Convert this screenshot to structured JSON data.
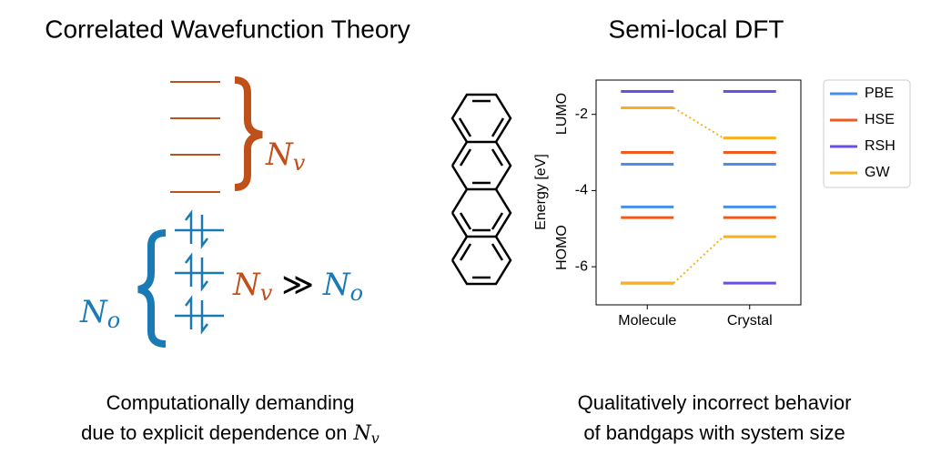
{
  "left_panel": {
    "title": "Correlated Wavefunction Theory",
    "virtual_label": {
      "base": "N",
      "sub": "v"
    },
    "occupied_label": {
      "base": "N",
      "sub": "o"
    },
    "relation": {
      "left": {
        "base": "N",
        "sub": "v"
      },
      "operator": "≫",
      "right": {
        "base": "N",
        "sub": "o"
      }
    },
    "caption": {
      "line1": "Computationally demanding",
      "line2": "due to explicit dependence on",
      "symbol": {
        "base": "N",
        "sub": "v"
      }
    }
  },
  "right_caption": {
    "line1": "Qualitatively incorrect behavior",
    "line2": "of bandgaps with system size"
  },
  "chart_data": {
    "type": "levels",
    "title": "Semi-local DFT",
    "y_label": "Energy [eV]",
    "level_labels": [
      "LUMO",
      "HOMO"
    ],
    "categories": [
      "Molecule",
      "Crystal"
    ],
    "ylim": [
      -7,
      -1.1
    ],
    "yticks": [
      -2,
      -4,
      -6
    ],
    "legend": "right",
    "series": [
      {
        "name": "PBE",
        "color": "#4a8fe7",
        "values": [
          [
            -3.31,
            -4.43
          ],
          [
            -3.31,
            -4.43
          ]
        ]
      },
      {
        "name": "HSE",
        "color": "#f05a1e",
        "values": [
          [
            -3.0,
            -4.71
          ],
          [
            -3.0,
            -4.71
          ]
        ]
      },
      {
        "name": "RSH",
        "color": "#6a4fe0",
        "values": [
          [
            -1.4,
            -6.43
          ],
          [
            -1.4,
            -6.43
          ]
        ]
      },
      {
        "name": "GW",
        "color": "#f7b11e",
        "values": [
          [
            -1.83,
            -6.43
          ],
          [
            -2.62,
            -5.21
          ]
        ],
        "dotted_connectors": true
      }
    ]
  }
}
